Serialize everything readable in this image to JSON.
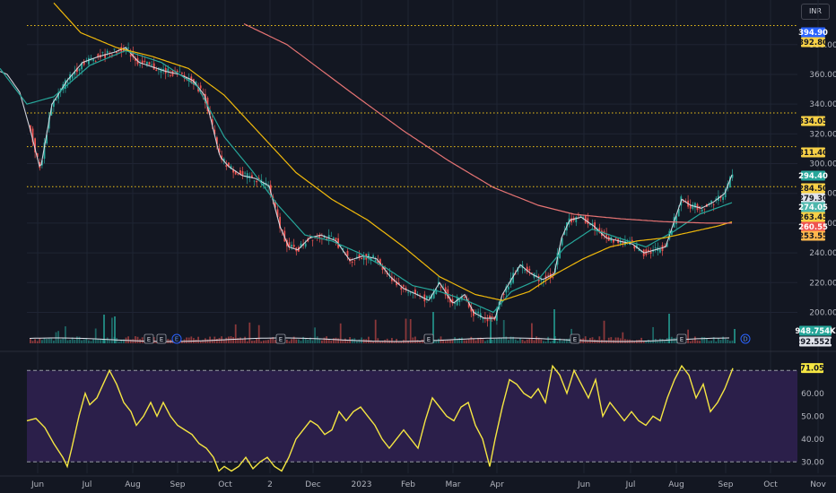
{
  "currency_label": "INR",
  "chart_data": [
    {
      "type": "line",
      "subtype": "candlestick-price",
      "x_tick_labels": [
        "Jun",
        "Jul",
        "Aug",
        "Sep",
        "Oct",
        "2",
        "Dec",
        "2023",
        "Feb",
        "Mar",
        "Apr",
        "Jun",
        "Jul",
        "Aug",
        "Sep",
        "Oct",
        "Nov"
      ],
      "y_tick_labels": [
        200,
        220,
        240,
        260,
        280,
        300,
        320,
        340,
        360,
        380
      ],
      "ylim": [
        178,
        410
      ],
      "series": [
        {
          "color": "#e0e3eb",
          "close_anchors": [
            [
              0,
              362
            ],
            [
              8,
              360
            ],
            [
              22,
              348
            ],
            [
              34,
              322
            ],
            [
              45,
              296
            ],
            [
              58,
              340
            ],
            [
              75,
              356
            ],
            [
              92,
              368
            ],
            [
              110,
              372
            ],
            [
              128,
              375
            ],
            [
              140,
              378
            ],
            [
              155,
              368
            ],
            [
              170,
              365
            ],
            [
              185,
              362
            ],
            [
              200,
              360
            ],
            [
              215,
              356
            ],
            [
              228,
              346
            ],
            [
              235,
              330
            ],
            [
              245,
              305
            ],
            [
              255,
              298
            ],
            [
              270,
              292
            ],
            [
              285,
              290
            ],
            [
              300,
              285
            ],
            [
              312,
              258
            ],
            [
              322,
              244
            ],
            [
              332,
              242
            ],
            [
              345,
              250
            ],
            [
              358,
              252
            ],
            [
              375,
              248
            ],
            [
              390,
              235
            ],
            [
              405,
              238
            ],
            [
              420,
              236
            ],
            [
              435,
              224
            ],
            [
              450,
              216
            ],
            [
              465,
              212
            ],
            [
              478,
              208
            ],
            [
              490,
              220
            ],
            [
              505,
              206
            ],
            [
              518,
              212
            ],
            [
              528,
              200
            ],
            [
              540,
              196
            ],
            [
              552,
              196
            ],
            [
              560,
              212
            ],
            [
              570,
              222
            ],
            [
              580,
              232
            ],
            [
              592,
              226
            ],
            [
              605,
              222
            ],
            [
              618,
              226
            ],
            [
              626,
              250
            ],
            [
              635,
              262
            ],
            [
              648,
              264
            ],
            [
              662,
              258
            ],
            [
              676,
              250
            ],
            [
              690,
              248
            ],
            [
              705,
              246
            ],
            [
              718,
              240
            ],
            [
              730,
              242
            ],
            [
              742,
              244
            ],
            [
              752,
              262
            ],
            [
              760,
              276
            ],
            [
              770,
              272
            ],
            [
              782,
              270
            ],
            [
              795,
              274
            ],
            [
              808,
              280
            ],
            [
              817,
              294
            ]
          ]
        },
        {
          "color": "#26a69a",
          "values_desc": "short moving average",
          "anchors": [
            [
              0,
              364
            ],
            [
              30,
              340
            ],
            [
              60,
              345
            ],
            [
              100,
              366
            ],
            [
              140,
              376
            ],
            [
              180,
              368
            ],
            [
              220,
              352
            ],
            [
              250,
              318
            ],
            [
              280,
              296
            ],
            [
              310,
              272
            ],
            [
              340,
              252
            ],
            [
              370,
              248
            ],
            [
              400,
              240
            ],
            [
              430,
              230
            ],
            [
              460,
              218
            ],
            [
              490,
              214
            ],
            [
              520,
              208
            ],
            [
              550,
              200
            ],
            [
              570,
              214
            ],
            [
              600,
              222
            ],
            [
              630,
              244
            ],
            [
              660,
              256
            ],
            [
              690,
              250
            ],
            [
              720,
              244
            ],
            [
              750,
              254
            ],
            [
              780,
              266
            ],
            [
              817,
              274
            ]
          ]
        },
        {
          "color": "#f0b90b",
          "values_desc": "medium moving average",
          "anchors": [
            [
              60,
              408
            ],
            [
              90,
              388
            ],
            [
              130,
              378
            ],
            [
              170,
              372
            ],
            [
              210,
              364
            ],
            [
              250,
              346
            ],
            [
              290,
              320
            ],
            [
              330,
              294
            ],
            [
              370,
              276
            ],
            [
              410,
              262
            ],
            [
              450,
              244
            ],
            [
              490,
              224
            ],
            [
              530,
              212
            ],
            [
              560,
              208
            ],
            [
              590,
              214
            ],
            [
              620,
              226
            ],
            [
              650,
              236
            ],
            [
              680,
              244
            ],
            [
              710,
              248
            ],
            [
              740,
              250
            ],
            [
              770,
              254
            ],
            [
              800,
              258
            ],
            [
              817,
              261
            ]
          ]
        },
        {
          "color": "#e57373",
          "values_desc": "long moving average",
          "anchors": [
            [
              272,
              394
            ],
            [
              320,
              380
            ],
            [
              360,
              362
            ],
            [
              400,
              344
            ],
            [
              450,
              322
            ],
            [
              500,
              302
            ],
            [
              550,
              284
            ],
            [
              600,
              272
            ],
            [
              640,
              266
            ],
            [
              690,
              263
            ],
            [
              740,
              261
            ],
            [
              790,
              260
            ],
            [
              817,
              260
            ]
          ]
        }
      ],
      "price_levels": [
        392.8,
        334.05,
        311.4,
        284.5
      ],
      "last_value_tags": [
        {
          "value": "394.90",
          "bg": "#2962ff"
        },
        {
          "value": "392.80",
          "bg": "#f7d046"
        },
        {
          "value": "334.05",
          "bg": "#f7d046"
        },
        {
          "value": "311.40",
          "bg": "#f7d046"
        },
        {
          "value": "294.40",
          "bg": "#26a69a"
        },
        {
          "value": "284.50",
          "bg": "#f7d046"
        },
        {
          "value": "279.30",
          "bg": "#e0e3eb"
        },
        {
          "value": "274.05",
          "bg": "#4db6ac"
        },
        {
          "value": "263.45",
          "bg": "#f7d046"
        },
        {
          "value": "260.55",
          "bg": "#ef5350"
        },
        {
          "value": "253.55",
          "bg": "#ffb74d"
        }
      ],
      "volume_tags": [
        {
          "value": "948.754K",
          "bg": "#26a69a"
        },
        {
          "value": "292.552K",
          "bg": "#e0e3eb"
        }
      ],
      "event_badges": [
        "E",
        "E",
        "E",
        "E",
        "E",
        "E",
        "E",
        "D",
        "D"
      ]
    },
    {
      "type": "line",
      "subtype": "oscillator",
      "y_tick_labels": [
        30,
        40,
        50,
        60
      ],
      "ylim": [
        25,
        76
      ],
      "levels": [
        70,
        30
      ],
      "last_value_tag": "71.05",
      "line_color": "#f5e642",
      "band_color": "#2b1f4a",
      "anchors": [
        [
          30,
          48
        ],
        [
          40,
          49
        ],
        [
          50,
          45
        ],
        [
          60,
          38
        ],
        [
          70,
          32
        ],
        [
          75,
          28
        ],
        [
          80,
          36
        ],
        [
          88,
          50
        ],
        [
          95,
          60
        ],
        [
          100,
          55
        ],
        [
          108,
          58
        ],
        [
          115,
          64
        ],
        [
          122,
          70
        ],
        [
          130,
          64
        ],
        [
          138,
          56
        ],
        [
          146,
          52
        ],
        [
          152,
          46
        ],
        [
          160,
          50
        ],
        [
          168,
          56
        ],
        [
          175,
          50
        ],
        [
          182,
          56
        ],
        [
          190,
          50
        ],
        [
          198,
          46
        ],
        [
          206,
          44
        ],
        [
          214,
          42
        ],
        [
          222,
          38
        ],
        [
          230,
          36
        ],
        [
          238,
          32
        ],
        [
          244,
          26
        ],
        [
          250,
          28
        ],
        [
          258,
          26
        ],
        [
          266,
          28
        ],
        [
          274,
          32
        ],
        [
          282,
          27
        ],
        [
          290,
          30
        ],
        [
          298,
          32
        ],
        [
          306,
          28
        ],
        [
          314,
          26
        ],
        [
          322,
          32
        ],
        [
          330,
          40
        ],
        [
          338,
          44
        ],
        [
          346,
          48
        ],
        [
          354,
          46
        ],
        [
          362,
          42
        ],
        [
          370,
          44
        ],
        [
          378,
          52
        ],
        [
          386,
          48
        ],
        [
          394,
          52
        ],
        [
          402,
          54
        ],
        [
          410,
          50
        ],
        [
          418,
          46
        ],
        [
          426,
          40
        ],
        [
          434,
          36
        ],
        [
          442,
          40
        ],
        [
          450,
          44
        ],
        [
          458,
          40
        ],
        [
          466,
          36
        ],
        [
          474,
          48
        ],
        [
          482,
          58
        ],
        [
          490,
          54
        ],
        [
          498,
          50
        ],
        [
          506,
          48
        ],
        [
          514,
          54
        ],
        [
          522,
          56
        ],
        [
          530,
          46
        ],
        [
          538,
          40
        ],
        [
          546,
          28
        ],
        [
          552,
          40
        ],
        [
          560,
          54
        ],
        [
          568,
          66
        ],
        [
          576,
          64
        ],
        [
          584,
          60
        ],
        [
          592,
          58
        ],
        [
          600,
          62
        ],
        [
          608,
          56
        ],
        [
          616,
          72
        ],
        [
          624,
          68
        ],
        [
          632,
          60
        ],
        [
          640,
          70
        ],
        [
          648,
          64
        ],
        [
          656,
          58
        ],
        [
          664,
          66
        ],
        [
          672,
          50
        ],
        [
          680,
          56
        ],
        [
          688,
          52
        ],
        [
          696,
          48
        ],
        [
          704,
          52
        ],
        [
          712,
          48
        ],
        [
          720,
          46
        ],
        [
          728,
          50
        ],
        [
          736,
          48
        ],
        [
          744,
          58
        ],
        [
          752,
          66
        ],
        [
          760,
          72
        ],
        [
          768,
          68
        ],
        [
          776,
          58
        ],
        [
          784,
          64
        ],
        [
          792,
          52
        ],
        [
          800,
          56
        ],
        [
          808,
          62
        ],
        [
          817,
          71
        ]
      ]
    }
  ]
}
